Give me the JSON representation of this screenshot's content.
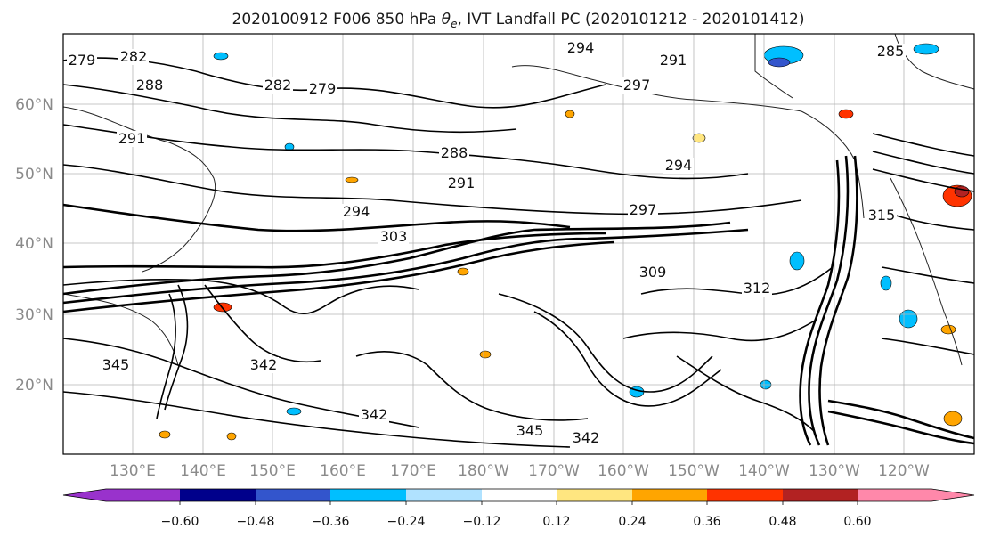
{
  "title": {
    "prefix": "2020100912 F006 850 hPa ",
    "theta": "θ",
    "theta_sub": "e",
    "suffix": ", IVT Landfall PC (2020101212 - 2020101412)"
  },
  "map": {
    "lat_labels": [
      "60°N",
      "50°N",
      "40°N",
      "30°N",
      "20°N"
    ],
    "lon_labels": [
      "130°E",
      "140°E",
      "150°E",
      "160°E",
      "170°E",
      "180°W",
      "170°W",
      "160°W",
      "150°W",
      "140°W",
      "130°W",
      "120°W"
    ],
    "contour_labels": [
      {
        "text": "279"
      },
      {
        "text": "282"
      },
      {
        "text": "282"
      },
      {
        "text": "288"
      },
      {
        "text": "279"
      },
      {
        "text": "294"
      },
      {
        "text": "291"
      },
      {
        "text": "297"
      },
      {
        "text": "288"
      },
      {
        "text": "291"
      },
      {
        "text": "294"
      },
      {
        "text": "297"
      },
      {
        "text": "294"
      },
      {
        "text": "303"
      },
      {
        "text": "309"
      },
      {
        "text": "312"
      },
      {
        "text": "345"
      },
      {
        "text": "342"
      },
      {
        "text": "342"
      },
      {
        "text": "345"
      },
      {
        "text": "342"
      },
      {
        "text": "285"
      },
      {
        "text": "291"
      },
      {
        "text": "315"
      }
    ]
  },
  "colorbar": {
    "ticks": [
      "−0.60",
      "−0.48",
      "−0.36",
      "−0.24",
      "−0.12",
      "0.12",
      "0.24",
      "0.36",
      "0.48",
      "0.60"
    ],
    "colors": [
      "#9932cc",
      "#00008b",
      "#3355cc",
      "#00bfff",
      "#b0e2ff",
      "#ffffff",
      "#ffe680",
      "#ffa500",
      "#ff3300",
      "#b22222",
      "#ff88aa"
    ]
  }
}
